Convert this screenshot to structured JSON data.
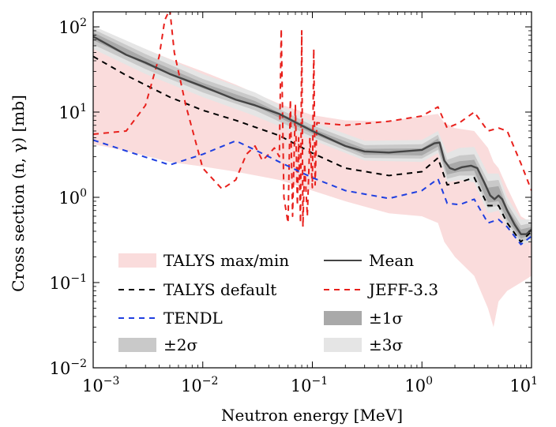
{
  "chart_data": {
    "type": "line",
    "xlabel": "Neutron energy [MeV]",
    "ylabel": "Cross section (n, γ) [mb]",
    "xscale": "log",
    "yscale": "log",
    "xlim": [
      0.001,
      10
    ],
    "ylim": [
      0.01,
      150
    ],
    "x_ticks": [
      {
        "value": 0.001,
        "base": "10",
        "exp": "−3"
      },
      {
        "value": 0.01,
        "base": "10",
        "exp": "−2"
      },
      {
        "value": 0.1,
        "base": "10",
        "exp": "−1"
      },
      {
        "value": 1,
        "base": "10",
        "exp": "0"
      },
      {
        "value": 10,
        "base": "10",
        "exp": "1"
      }
    ],
    "y_ticks": [
      {
        "value": 0.01,
        "base": "10",
        "exp": "−2"
      },
      {
        "value": 0.1,
        "base": "10",
        "exp": "−1"
      },
      {
        "value": 1,
        "base": "10",
        "exp": "0"
      },
      {
        "value": 10,
        "base": "10",
        "exp": "1"
      },
      {
        "value": 100,
        "base": "10",
        "exp": "2"
      }
    ],
    "grid": false,
    "legend_position": "bottom-left",
    "colors": {
      "talys_band": "#fadcdc",
      "mean": "#444444",
      "talys_default": "#000000",
      "jeff": "#e8201c",
      "tendl": "#1f3fe0",
      "sigma1": "#a9a9a9",
      "sigma2": "#c9c9c9",
      "sigma3": "#e5e5e5"
    },
    "series": [
      {
        "key": "talys_band",
        "name": "TALYS max/min",
        "kind": "band",
        "x": [
          0.001,
          0.002,
          0.005,
          0.01,
          0.02,
          0.05,
          0.1,
          0.2,
          0.5,
          1.0,
          1.4,
          1.6,
          2,
          3,
          4,
          4.5,
          5,
          6,
          8,
          10
        ],
        "low": [
          4.2,
          3.5,
          2.6,
          2.3,
          2.0,
          1.6,
          1.2,
          0.9,
          0.65,
          0.6,
          0.5,
          0.3,
          0.2,
          0.12,
          0.05,
          0.03,
          0.06,
          0.08,
          0.1,
          0.12
        ],
        "high": [
          95,
          68,
          42,
          30,
          21,
          12.5,
          9.2,
          8.0,
          7.8,
          9.0,
          9.5,
          7.5,
          6.5,
          6.0,
          3.8,
          2.6,
          2.2,
          1.3,
          0.6,
          0.5
        ]
      },
      {
        "key": "sigma3",
        "name": "±3σ",
        "kind": "band",
        "x": [
          0.001,
          0.003,
          0.01,
          0.03,
          0.1,
          0.3,
          1.0,
          1.4,
          1.7,
          2.2,
          3,
          4,
          5,
          6,
          8,
          10
        ],
        "low": [
          55,
          28,
          15,
          9,
          4.7,
          2.7,
          2.6,
          3.3,
          1.5,
          1.6,
          1.5,
          0.65,
          0.7,
          0.45,
          0.28,
          0.3
        ],
        "high": [
          102,
          55,
          28,
          17,
          7.7,
          4.6,
          4.7,
          6.0,
          3.3,
          3.8,
          3.9,
          1.9,
          1.9,
          1.0,
          0.55,
          0.55
        ]
      },
      {
        "key": "sigma2",
        "name": "±2σ",
        "kind": "band",
        "x": [
          0.001,
          0.003,
          0.01,
          0.03,
          0.1,
          0.3,
          1.0,
          1.4,
          1.7,
          2.2,
          3,
          4,
          5,
          6,
          8,
          10
        ],
        "low": [
          62,
          32,
          17,
          10.5,
          5.1,
          2.9,
          2.85,
          3.6,
          1.65,
          1.8,
          1.8,
          0.75,
          0.8,
          0.5,
          0.3,
          0.33
        ],
        "high": [
          94,
          48,
          24.5,
          15,
          7.0,
          4.1,
          4.2,
          5.4,
          2.75,
          3.1,
          3.2,
          1.55,
          1.6,
          0.85,
          0.47,
          0.5
        ]
      },
      {
        "key": "sigma1",
        "name": "±1σ",
        "kind": "band",
        "x": [
          0.001,
          0.003,
          0.01,
          0.03,
          0.1,
          0.3,
          1.0,
          1.4,
          1.7,
          2.2,
          3,
          4,
          5,
          6,
          8,
          10
        ],
        "low": [
          70,
          36,
          19,
          11.8,
          5.6,
          3.15,
          3.1,
          3.95,
          1.85,
          2.0,
          2.05,
          0.87,
          0.9,
          0.55,
          0.33,
          0.36
        ],
        "high": [
          86,
          43,
          22,
          13.5,
          6.4,
          3.7,
          3.75,
          4.9,
          2.4,
          2.65,
          2.75,
          1.3,
          1.35,
          0.75,
          0.42,
          0.45
        ]
      },
      {
        "key": "talys_default",
        "name": "TALYS default",
        "kind": "line",
        "dash": "7,6",
        "x": [
          0.001,
          0.002,
          0.005,
          0.01,
          0.02,
          0.05,
          0.1,
          0.2,
          0.5,
          1.0,
          1.4,
          1.7,
          2.2,
          3,
          4,
          5,
          6,
          8,
          10
        ],
        "y": [
          45,
          27,
          15,
          10.5,
          8.0,
          5.3,
          3.3,
          2.2,
          1.8,
          2.0,
          2.9,
          1.4,
          1.5,
          1.7,
          0.8,
          0.8,
          0.5,
          0.3,
          0.4
        ]
      },
      {
        "key": "jeff",
        "name": "JEFF-3.3",
        "kind": "line",
        "dash": "7,6",
        "x": [
          0.001,
          0.002,
          0.003,
          0.004,
          0.0045,
          0.005,
          0.0055,
          0.007,
          0.01,
          0.015,
          0.02,
          0.025,
          0.03,
          0.035,
          0.04,
          0.045,
          0.05,
          0.052,
          0.055,
          0.06,
          0.063,
          0.066,
          0.07,
          0.073,
          0.075,
          0.078,
          0.08,
          0.082,
          0.085,
          0.09,
          0.095,
          0.1,
          0.103,
          0.106,
          0.11,
          0.2,
          0.5,
          1.0,
          1.4,
          1.7,
          2.2,
          3.0,
          4.0,
          5.0,
          6.0,
          8.0,
          10.0
        ],
        "y": [
          5.5,
          6.0,
          12,
          45,
          120,
          160,
          50,
          12,
          2.2,
          1.25,
          1.6,
          3.2,
          4.0,
          2.7,
          3.2,
          3.8,
          3.0,
          95,
          1.0,
          0.5,
          14,
          0.6,
          12,
          0.8,
          5.0,
          0.5,
          90,
          0.45,
          2.5,
          0.6,
          5,
          1.3,
          55,
          1.4,
          7.5,
          7.0,
          7.8,
          9.0,
          11.5,
          6.5,
          7.5,
          10.0,
          6.0,
          6.5,
          6.0,
          2.5,
          1.2
        ]
      },
      {
        "key": "tendl",
        "name": "TENDL",
        "kind": "line",
        "dash": "7,6",
        "x": [
          0.001,
          0.002,
          0.005,
          0.01,
          0.02,
          0.03,
          0.05,
          0.1,
          0.2,
          0.5,
          1.0,
          1.4,
          1.7,
          2.2,
          3.0,
          4.0,
          5.0,
          6.0,
          8.0,
          10.0
        ],
        "y": [
          4.7,
          3.5,
          2.4,
          3.2,
          4.6,
          3.6,
          2.6,
          1.7,
          1.2,
          0.97,
          1.2,
          1.65,
          0.85,
          0.82,
          0.95,
          0.5,
          0.55,
          0.45,
          0.28,
          0.35
        ]
      },
      {
        "key": "mean",
        "name": "Mean",
        "kind": "line",
        "dash": "",
        "x": [
          0.001,
          0.002,
          0.003,
          0.005,
          0.01,
          0.02,
          0.03,
          0.05,
          0.1,
          0.2,
          0.3,
          0.5,
          1.0,
          1.3,
          1.45,
          1.6,
          1.8,
          2.0,
          2.3,
          2.8,
          3.2,
          3.7,
          4.2,
          4.6,
          5.0,
          5.4,
          6.0,
          7.0,
          8.0,
          9.0,
          10.0
        ],
        "y": [
          77,
          47,
          38,
          28,
          20,
          14,
          12,
          9.5,
          6.0,
          4.0,
          3.45,
          3.35,
          3.6,
          4.3,
          4.4,
          2.7,
          2.2,
          2.1,
          2.25,
          2.35,
          2.2,
          1.5,
          1.05,
          0.95,
          1.05,
          0.95,
          0.7,
          0.48,
          0.37,
          0.37,
          0.42
        ]
      }
    ],
    "legend": [
      {
        "series": "talys_band",
        "label": "TALYS max/min"
      },
      {
        "series": "mean",
        "label": "Mean"
      },
      {
        "series": "talys_default",
        "label": "TALYS default"
      },
      {
        "series": "jeff",
        "label": "JEFF-3.3"
      },
      {
        "series": "tendl",
        "label": "TENDL"
      },
      {
        "series": "sigma1",
        "label": "±1σ"
      },
      {
        "series": "sigma2",
        "label": "±2σ"
      },
      {
        "series": "sigma3",
        "label": "±3σ"
      }
    ]
  }
}
